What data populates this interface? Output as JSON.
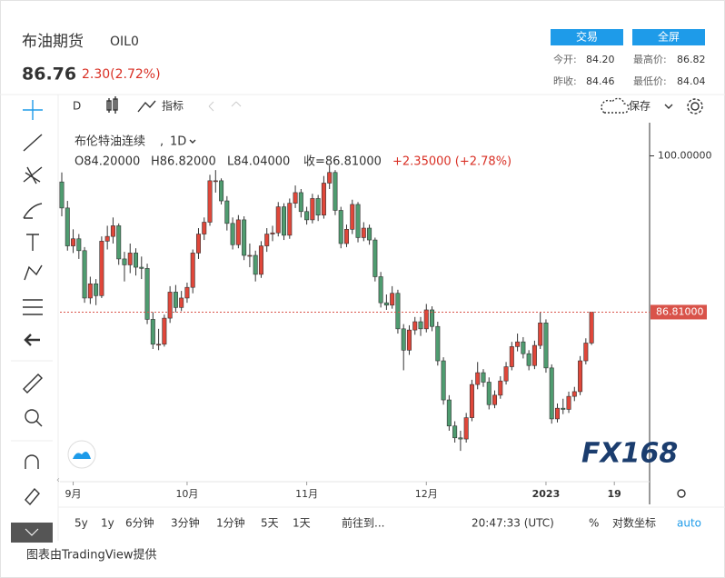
{
  "header": {
    "name": "布油期货",
    "code": "OIL0",
    "price": "86.76",
    "change": "2.30(2.72%)",
    "buttons": [
      "交易",
      "全屏"
    ],
    "stats": [
      {
        "label": "今开:",
        "value": "84.20"
      },
      {
        "label": "最高价:",
        "value": "86.82"
      },
      {
        "label": "昨收:",
        "value": "84.46"
      },
      {
        "label": "最低价:",
        "value": "84.04"
      }
    ]
  },
  "toolbar": {
    "interval": "D",
    "indicators": "指标",
    "save": "保存"
  },
  "legend": {
    "ohlc": [
      "O84.20000",
      "H86.82000",
      "L84.04000",
      "收=86.81000"
    ],
    "change": "+2.35000 (+2.78%)"
  },
  "chart_data": {
    "type": "candlestick",
    "title": "布伦特油连续",
    "interval": "1D",
    "up_color": "#e0473a",
    "down_color": "#4f9c70",
    "ylim": [
      72.5,
      102.8
    ],
    "yticks": [
      {
        "value": 100,
        "label": "100.00000"
      }
    ],
    "last_price": {
      "value": 86.81,
      "label": "86.81000"
    },
    "last_color": "#d9534a",
    "watermark": "FX168",
    "categories": [
      null,
      null,
      "9月",
      null,
      null,
      null,
      null,
      null,
      null,
      null,
      null,
      null,
      null,
      null,
      null,
      null,
      null,
      null,
      null,
      null,
      null,
      null,
      "10月",
      null,
      null,
      null,
      null,
      null,
      null,
      null,
      null,
      null,
      null,
      null,
      null,
      null,
      null,
      null,
      null,
      null,
      null,
      null,
      null,
      "11月",
      null,
      null,
      null,
      null,
      null,
      null,
      null,
      null,
      null,
      null,
      null,
      null,
      null,
      null,
      null,
      null,
      null,
      null,
      null,
      null,
      "12月",
      null,
      null,
      null,
      null,
      null,
      null,
      null,
      null,
      null,
      null,
      null,
      null,
      null,
      null,
      null,
      null,
      null,
      null,
      null,
      null,
      "2023",
      null,
      null,
      null,
      null,
      null,
      null,
      null,
      null,
      null,
      null,
      null,
      "19"
    ],
    "ohlc": [
      [
        97.8,
        98.6,
        94.9,
        95.6
      ],
      [
        95.6,
        96.2,
        92.0,
        92.4
      ],
      [
        92.4,
        93.8,
        91.8,
        93.0
      ],
      [
        93.0,
        93.4,
        91.3,
        92.0
      ],
      [
        92.0,
        92.3,
        87.6,
        88.0
      ],
      [
        88.0,
        89.8,
        87.5,
        89.2
      ],
      [
        89.2,
        89.6,
        87.4,
        88.2
      ],
      [
        88.2,
        93.2,
        88.0,
        92.8
      ],
      [
        92.8,
        94.1,
        92.1,
        93.2
      ],
      [
        93.2,
        94.8,
        92.6,
        94.1
      ],
      [
        94.1,
        94.3,
        90.8,
        91.3
      ],
      [
        91.3,
        91.9,
        89.4,
        90.8
      ],
      [
        90.8,
        92.6,
        90.1,
        91.8
      ],
      [
        91.8,
        92.2,
        89.9,
        90.6
      ],
      [
        90.6,
        91.5,
        89.6,
        90.5
      ],
      [
        90.5,
        90.9,
        85.8,
        86.2
      ],
      [
        86.2,
        86.8,
        83.7,
        84.1
      ],
      [
        84.1,
        85.4,
        83.6,
        84.1
      ],
      [
        84.1,
        86.6,
        83.9,
        86.3
      ],
      [
        86.3,
        89.0,
        85.9,
        88.5
      ],
      [
        88.5,
        89.1,
        86.8,
        87.2
      ],
      [
        87.2,
        88.6,
        86.9,
        88.0
      ],
      [
        88.0,
        89.3,
        87.6,
        88.9
      ],
      [
        88.9,
        92.1,
        88.4,
        91.8
      ],
      [
        91.8,
        93.9,
        91.3,
        93.4
      ],
      [
        93.4,
        94.8,
        92.9,
        94.4
      ],
      [
        94.4,
        98.4,
        94.1,
        97.9
      ],
      [
        97.9,
        98.8,
        96.9,
        97.9
      ],
      [
        97.9,
        98.1,
        95.9,
        96.2
      ],
      [
        96.2,
        96.6,
        93.7,
        94.3
      ],
      [
        94.3,
        94.8,
        92.1,
        92.5
      ],
      [
        92.5,
        95.0,
        92.2,
        94.6
      ],
      [
        94.6,
        94.9,
        91.2,
        91.6
      ],
      [
        91.6,
        92.6,
        90.6,
        91.6
      ],
      [
        91.6,
        92.0,
        89.4,
        90.0
      ],
      [
        90.0,
        92.8,
        89.7,
        92.4
      ],
      [
        92.4,
        93.9,
        91.9,
        93.4
      ],
      [
        93.4,
        94.1,
        92.8,
        93.5
      ],
      [
        93.5,
        96.1,
        93.2,
        95.7
      ],
      [
        95.7,
        96.0,
        92.9,
        93.3
      ],
      [
        93.3,
        96.4,
        93.0,
        96.0
      ],
      [
        96.0,
        97.5,
        95.6,
        96.9
      ],
      [
        96.9,
        97.2,
        94.8,
        95.3
      ],
      [
        95.3,
        95.7,
        94.2,
        94.6
      ],
      [
        94.6,
        96.8,
        94.3,
        96.4
      ],
      [
        96.4,
        96.7,
        94.5,
        95.0
      ],
      [
        95.0,
        98.3,
        94.7,
        97.7
      ],
      [
        97.7,
        99.2,
        97.2,
        98.6
      ],
      [
        98.6,
        98.8,
        95.0,
        95.4
      ],
      [
        95.4,
        95.7,
        92.2,
        92.6
      ],
      [
        92.6,
        94.2,
        92.3,
        93.8
      ],
      [
        93.8,
        96.3,
        93.4,
        95.9
      ],
      [
        95.9,
        96.1,
        92.7,
        93.1
      ],
      [
        93.1,
        94.4,
        92.8,
        93.9
      ],
      [
        93.9,
        94.2,
        92.5,
        92.9
      ],
      [
        92.9,
        93.1,
        89.4,
        89.8
      ],
      [
        89.8,
        90.2,
        87.2,
        87.6
      ],
      [
        87.6,
        88.3,
        87.0,
        87.4
      ],
      [
        87.4,
        89.0,
        87.1,
        88.4
      ],
      [
        88.4,
        88.7,
        85.0,
        85.4
      ],
      [
        85.4,
        85.8,
        81.9,
        83.6
      ],
      [
        83.6,
        85.7,
        83.2,
        85.3
      ],
      [
        85.3,
        86.4,
        84.9,
        86.0
      ],
      [
        86.0,
        86.4,
        84.8,
        85.4
      ],
      [
        85.4,
        87.5,
        85.1,
        87.0
      ],
      [
        87.0,
        87.3,
        85.2,
        85.6
      ],
      [
        85.6,
        86.0,
        82.3,
        82.7
      ],
      [
        82.7,
        83.0,
        79.0,
        79.4
      ],
      [
        79.4,
        79.8,
        76.8,
        77.2
      ],
      [
        77.2,
        77.6,
        75.8,
        76.2
      ],
      [
        76.2,
        76.8,
        75.1,
        76.1
      ],
      [
        76.1,
        78.3,
        75.8,
        77.9
      ],
      [
        77.9,
        81.1,
        77.6,
        80.7
      ],
      [
        80.7,
        82.6,
        80.3,
        81.7
      ],
      [
        81.7,
        82.0,
        80.5,
        80.9
      ],
      [
        80.9,
        81.3,
        78.6,
        79.0
      ],
      [
        79.0,
        80.2,
        78.7,
        79.8
      ],
      [
        79.8,
        81.4,
        79.5,
        81.0
      ],
      [
        81.0,
        82.6,
        80.7,
        82.2
      ],
      [
        82.2,
        84.3,
        81.9,
        83.9
      ],
      [
        83.9,
        85.0,
        83.5,
        84.3
      ],
      [
        84.3,
        84.7,
        82.9,
        83.3
      ],
      [
        83.3,
        83.6,
        81.9,
        82.3
      ],
      [
        82.3,
        84.4,
        82.0,
        84.0
      ],
      [
        84.0,
        86.8,
        83.7,
        85.9
      ],
      [
        85.9,
        86.2,
        81.7,
        82.1
      ],
      [
        82.1,
        82.4,
        77.4,
        77.8
      ],
      [
        77.8,
        79.1,
        77.5,
        78.7
      ],
      [
        78.7,
        79.5,
        78.2,
        78.6
      ],
      [
        78.6,
        80.1,
        78.3,
        79.7
      ],
      [
        79.7,
        80.5,
        79.3,
        80.1
      ],
      [
        80.1,
        83.1,
        79.8,
        82.7
      ],
      [
        82.7,
        84.6,
        82.4,
        84.2
      ],
      [
        84.2,
        86.82,
        84.04,
        86.81
      ],
      null,
      null,
      null,
      null
    ]
  },
  "bottom_bar": {
    "ranges": [
      "5y",
      "1y",
      "6分钟",
      "3分钟",
      "1分钟",
      "5天",
      "1天"
    ],
    "goto": "前往到...",
    "time": "20:47:33 (UTC)",
    "percent": "%",
    "log": "对数坐标",
    "auto": "auto"
  },
  "footer": "图表由TradingView提供"
}
